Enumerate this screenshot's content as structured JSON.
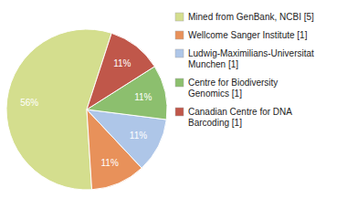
{
  "chart_data": {
    "type": "pie",
    "categories": [
      "Mined from GenBank, NCBI [5]",
      "Wellcome Sanger Institute [1]",
      "Ludwig-Maximilians-Universitat\nMunchen [1]",
      "Centre for Biodiversity\nGenomics [1]",
      "Canadian Centre for DNA\nBarcoding [1]"
    ],
    "values": [
      56,
      11,
      11,
      11,
      11
    ],
    "value_labels": [
      "56%",
      "11%",
      "11%",
      "11%",
      "11%"
    ],
    "colors": [
      "#d4de8e",
      "#e8915a",
      "#aec6e8",
      "#8cbf6e",
      "#c0574a"
    ],
    "data_labels": true,
    "legend": "right"
  }
}
